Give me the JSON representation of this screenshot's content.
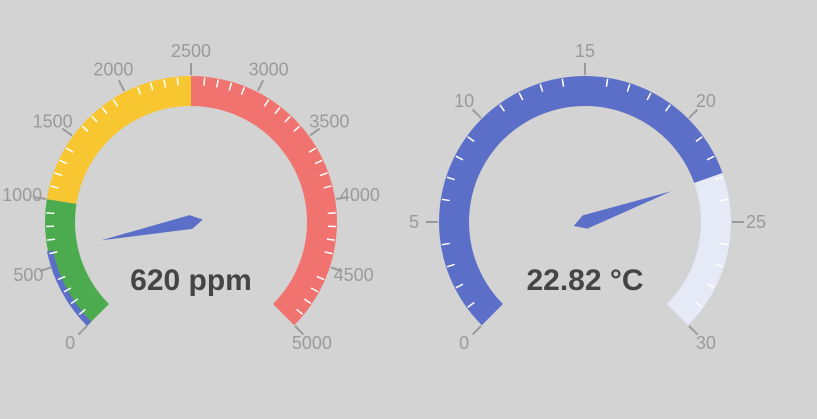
{
  "chart_data": [
    {
      "type": "gauge",
      "min": 0,
      "max": 5000,
      "value": 620,
      "readout": "620 ppm",
      "tick_labels": [
        "0",
        "500",
        "1000",
        "1500",
        "2000",
        "2500",
        "3000",
        "3500",
        "4000",
        "4500",
        "5000"
      ],
      "tick_values": [
        0,
        500,
        1000,
        1500,
        2000,
        2500,
        3000,
        3500,
        4000,
        4500,
        5000
      ],
      "bands": [
        {
          "from": 0,
          "to": 1000,
          "color": "#4caa4f"
        },
        {
          "from": 1000,
          "to": 2500,
          "color": "#f7c631"
        },
        {
          "from": 2500,
          "to": 5000,
          "color": "#f07370"
        }
      ],
      "value_bar_color": "#5c6fc8",
      "needle_color": "#5c6fc8",
      "minor_ticks": true
    },
    {
      "type": "gauge",
      "min": 0,
      "max": 30,
      "value": 22.82,
      "readout": "22.82 °C",
      "tick_labels": [
        "0",
        "5",
        "10",
        "15",
        "20",
        "25",
        "30"
      ],
      "tick_values": [
        0,
        5,
        10,
        15,
        20,
        25,
        30
      ],
      "bands": [
        {
          "from": 0,
          "to": 22.82,
          "color": "#5c6fc8"
        },
        {
          "from": 22.82,
          "to": 30,
          "color": "#e6e9f6"
        }
      ],
      "needle_color": "#5c6fc8",
      "minor_ticks": true
    }
  ],
  "colors": {
    "background": "#d3d3d3",
    "tick": "#9a9a9a",
    "readout_text": "#454545",
    "minor_tick": "#ffffff"
  }
}
